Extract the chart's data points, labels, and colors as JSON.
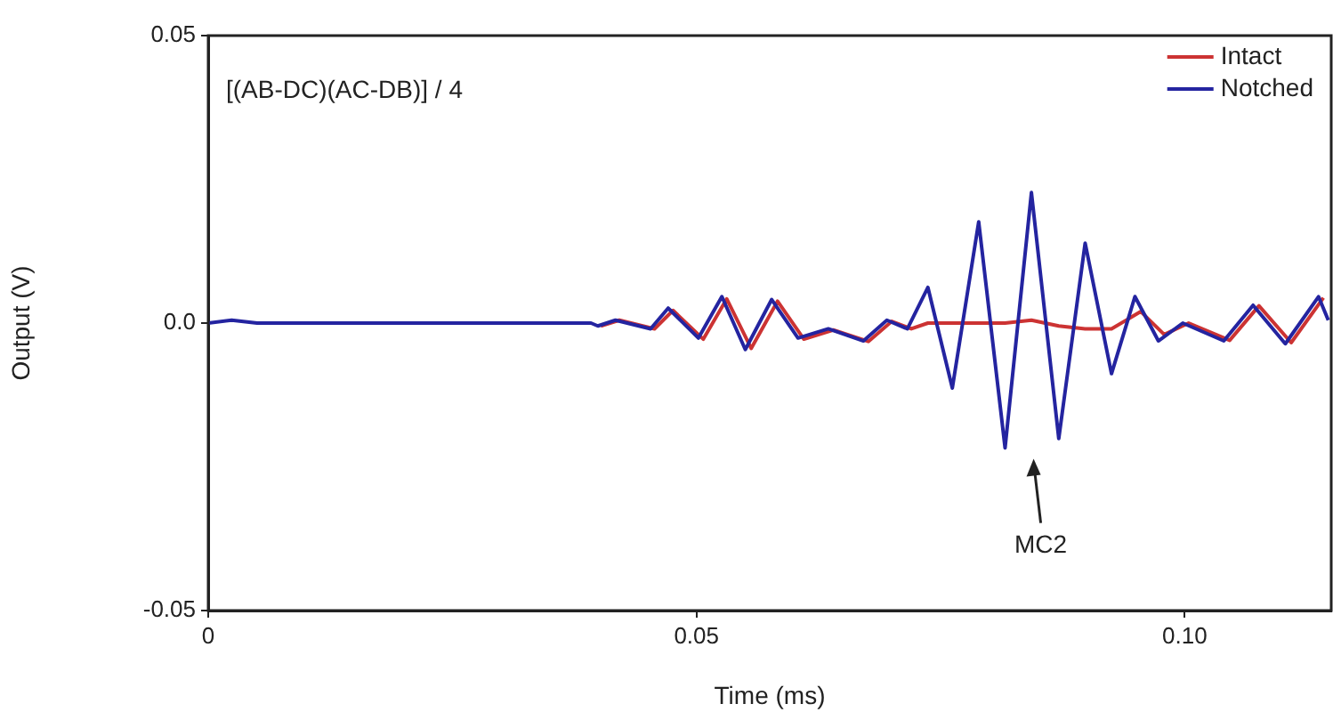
{
  "chart_data": {
    "type": "line",
    "xlabel": "Time (ms)",
    "ylabel": "Output (V)",
    "xlim": [
      0,
      0.115
    ],
    "xticks": [
      0,
      0.05,
      {
        "value": 0.1,
        "label": "0.10"
      }
    ],
    "ylim": [
      -0.05,
      0.05
    ],
    "yticks": [
      {
        "value": -0.05,
        "label": "-0.05"
      },
      {
        "value": 0,
        "label": "0.0"
      },
      0.05
    ],
    "grid": false,
    "legend": "top right",
    "marker": "none",
    "line_style": "solid",
    "annotations": [
      "[(AB-DC)(AC-DB)] / 4",
      "MC2"
    ],
    "series": [
      {
        "name": "Intact",
        "color": "#cc3333",
        "x": [
          0.0402,
          0.0421,
          0.0457,
          0.0476,
          0.0507,
          0.0531,
          0.0556,
          0.0583,
          0.061,
          0.064,
          0.0676,
          0.07,
          0.072,
          0.0737,
          0.0762,
          0.0789,
          0.0816,
          0.0843,
          0.0871,
          0.0898,
          0.0925,
          0.0955,
          0.0979,
          0.1004,
          0.1046,
          0.1076,
          0.1109,
          0.1142
        ],
        "values": [
          -0.0005,
          0.0005,
          -0.001,
          0.0022,
          -0.0028,
          0.0042,
          -0.0044,
          0.0038,
          -0.0028,
          -0.0012,
          -0.0032,
          0.0003,
          -0.001,
          0,
          0,
          0,
          0,
          0.0005,
          -0.0005,
          -0.001,
          -0.001,
          0.002,
          -0.002,
          0,
          -0.003,
          0.003,
          -0.0034,
          0.0044
        ]
      },
      {
        "name": "Notched",
        "color": "#2424a0",
        "x": [
          0,
          0.0024,
          0.005,
          0.0392,
          0.0399,
          0.0417,
          0.0453,
          0.0471,
          0.0502,
          0.0526,
          0.055,
          0.0577,
          0.0604,
          0.0635,
          0.0671,
          0.0695,
          0.0716,
          0.0737,
          0.0762,
          0.0789,
          0.0816,
          0.0843,
          0.0871,
          0.0898,
          0.0925,
          0.0949,
          0.0973,
          0.0998,
          0.104,
          0.107,
          0.1103,
          0.1137,
          0.1147
        ],
        "values": [
          0,
          0.0005,
          0,
          0,
          -0.0005,
          0.0005,
          -0.001,
          0.0026,
          -0.0026,
          0.0046,
          -0.0046,
          0.0041,
          -0.0026,
          -0.001,
          -0.0031,
          0.0005,
          -0.001,
          0.0062,
          -0.0113,
          0.0176,
          -0.0217,
          0.0227,
          -0.0201,
          0.0139,
          -0.0088,
          0.0046,
          -0.0031,
          0,
          -0.0031,
          0.0031,
          -0.0036,
          0.0046,
          0.0005
        ]
      }
    ]
  }
}
